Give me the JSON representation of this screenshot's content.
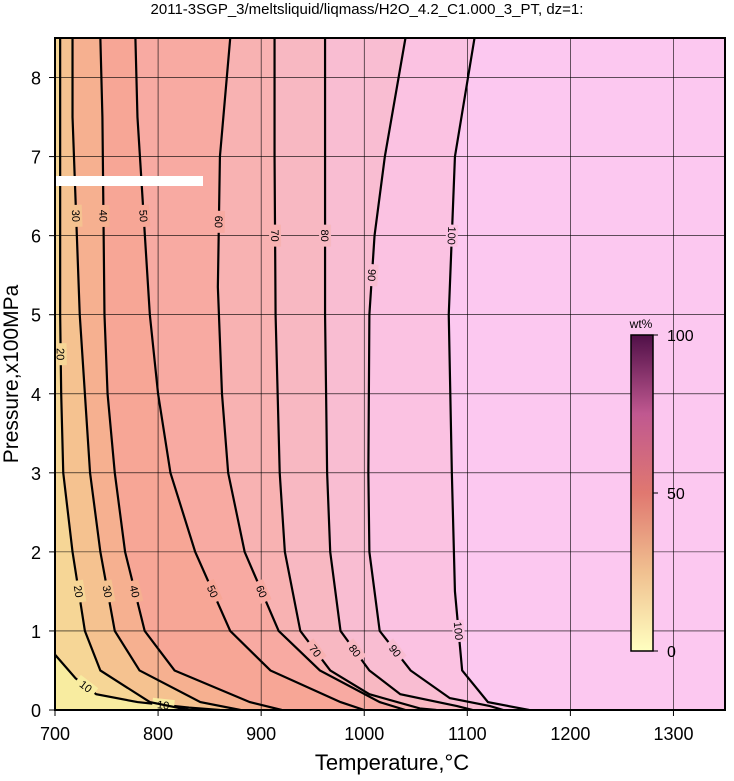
{
  "chart_data": {
    "type": "contour",
    "title": "2011-3SGP_3/meltsliquid/liqmass/H2O_4.2_C1.000_3_PT, dz=1:",
    "x_label": "Temperature,°C",
    "y_label": "Pressure,x100MPa",
    "xlim": [
      700,
      1350
    ],
    "ylim": [
      0,
      8.5
    ],
    "xticks": [
      700,
      800,
      900,
      1000,
      1100,
      1200,
      1300
    ],
    "yticks": [
      0,
      1,
      2,
      3,
      4,
      5,
      6,
      7,
      8
    ],
    "grid": true,
    "above_fill": "#fcc8f0",
    "contours": [
      {
        "level": 10,
        "fill": "#f8eca0",
        "x": [
          700,
          720,
          740,
          780,
          830,
          860
        ],
        "y": [
          0.7,
          0.4,
          0.2,
          0.1,
          0.03,
          0
        ]
      },
      {
        "level": 20,
        "fill": "#f6d696",
        "x": [
          705,
          705,
          706,
          708,
          717,
          729,
          744,
          792,
          830
        ],
        "y": [
          8.5,
          5,
          4,
          3,
          2,
          1,
          0.5,
          0.1,
          0
        ]
      },
      {
        "level": 30,
        "fill": "#f5c290",
        "x": [
          717,
          717,
          724,
          729,
          734,
          744,
          758,
          782,
          841,
          880
        ],
        "y": [
          8.5,
          7.5,
          5,
          4,
          3,
          2,
          1,
          0.5,
          0.1,
          0
        ]
      },
      {
        "level": 40,
        "fill": "#f6b090",
        "x": [
          744,
          746,
          748,
          751,
          758,
          768,
          787,
          816,
          889,
          920
        ],
        "y": [
          8.5,
          7.5,
          5,
          4,
          3,
          2,
          1,
          0.5,
          0.1,
          0
        ]
      },
      {
        "level": 50,
        "fill": "#f7a696",
        "x": [
          778,
          780,
          792,
          800,
          812,
          836,
          870,
          909,
          977,
          1000
        ],
        "y": [
          8.5,
          7.5,
          5,
          4,
          3,
          2,
          1,
          0.5,
          0.1,
          0
        ]
      },
      {
        "level": 60,
        "fill": "#f8aaa2",
        "x": [
          870,
          860,
          858,
          862,
          868,
          884,
          917,
          957,
          1015,
          1040
        ],
        "y": [
          8.5,
          7,
          5.35,
          4,
          3,
          2,
          1,
          0.5,
          0.1,
          0
        ]
      },
      {
        "level": 70,
        "fill": "#f8b2b2",
        "x": [
          913,
          913,
          914,
          918,
          923,
          938,
          967,
          1005,
          1054,
          1070
        ],
        "y": [
          8.5,
          7,
          5,
          3,
          2,
          1,
          0.5,
          0.2,
          0.02,
          0
        ]
      },
      {
        "level": 80,
        "fill": "#f8b8c2",
        "x": [
          962,
          962,
          962,
          964,
          967,
          977,
          1005,
          1035,
          1090,
          1105
        ],
        "y": [
          8.5,
          7,
          5,
          3,
          2,
          1,
          0.5,
          0.2,
          0.05,
          0
        ]
      },
      {
        "level": 90,
        "fill": "#f9bdd2",
        "x": [
          1040,
          1020,
          1010,
          1005,
          1004,
          1005,
          1015,
          1045,
          1083,
          1122,
          1135
        ],
        "y": [
          8.5,
          7,
          6,
          5,
          3,
          2,
          1,
          0.5,
          0.15,
          0.05,
          0
        ]
      },
      {
        "level": 100,
        "fill": "#fbc2e2",
        "x": [
          1107,
          1088,
          1082,
          1085,
          1088,
          1095,
          1120,
          1160
        ],
        "y": [
          8.5,
          7,
          5,
          3,
          1.5,
          0.5,
          0.1,
          0
        ]
      }
    ],
    "colorbar": {
      "label": "wt%",
      "lim": [
        0,
        100
      ],
      "ticks": [
        0,
        50,
        100
      ],
      "colors": [
        "#ffffc0",
        "#f0c090",
        "#e07870",
        "#c05890",
        "#501048"
      ]
    }
  }
}
